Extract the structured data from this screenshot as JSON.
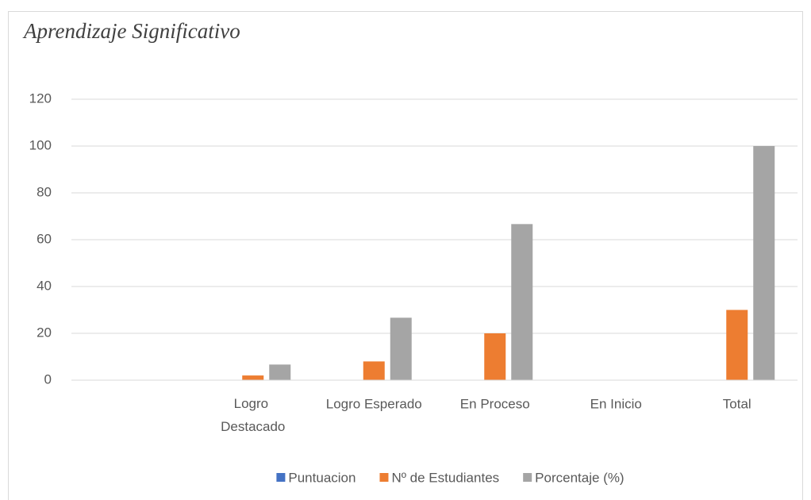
{
  "chart_data": {
    "type": "bar",
    "title": "Aprendizaje Significativo",
    "categories": [
      null,
      "Logro Destacado",
      "Logro Esperado",
      "En Proceso",
      "En Inicio",
      "Total"
    ],
    "series": [
      {
        "name": "Puntuacion",
        "color": "#4472c4",
        "values": [
          null,
          null,
          null,
          null,
          null,
          null
        ]
      },
      {
        "name": "Nº de Estudiantes",
        "color": "#ed7d31",
        "values": [
          null,
          2,
          8,
          20,
          0,
          30
        ]
      },
      {
        "name": "Porcentaje (%)",
        "color": "#a5a5a5",
        "values": [
          null,
          6.67,
          26.67,
          66.67,
          0,
          100
        ]
      }
    ],
    "ylim": [
      0,
      120
    ],
    "yticks": [
      0,
      20,
      40,
      60,
      80,
      100,
      120
    ],
    "grid": true,
    "legend": "bottom"
  }
}
